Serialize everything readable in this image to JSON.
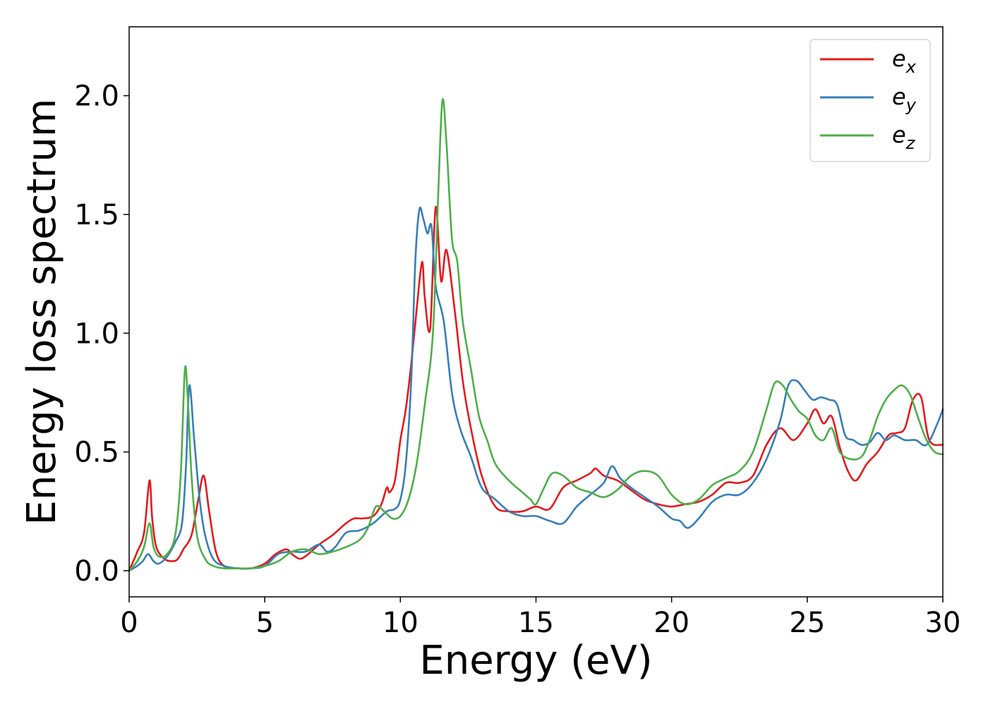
{
  "chart_data": {
    "type": "line",
    "title": "",
    "xlabel": "Energy (eV)",
    "ylabel": "Energy loss spectrum",
    "xlim": [
      0,
      30
    ],
    "ylim": [
      -0.11,
      2.29
    ],
    "xticks": [
      0,
      5,
      10,
      15,
      20,
      25,
      30
    ],
    "xtick_labels": [
      "0",
      "5",
      "10",
      "15",
      "20",
      "25",
      "30"
    ],
    "yticks": [
      0.0,
      0.5,
      1.0,
      1.5,
      2.0
    ],
    "ytick_labels": [
      "0.0",
      "0.5",
      "1.0",
      "1.5",
      "2.0"
    ],
    "grid": false,
    "legend_position": "top-right",
    "series": [
      {
        "name": "e_x",
        "label_base": "e",
        "label_sub": "x",
        "color": "#e41a1c",
        "x": [
          0,
          0.3,
          0.55,
          0.75,
          0.85,
          1.0,
          1.3,
          1.6,
          1.8,
          2.0,
          2.3,
          2.55,
          2.75,
          2.95,
          3.2,
          3.5,
          4.0,
          4.5,
          5.0,
          5.4,
          5.8,
          6.0,
          6.3,
          6.6,
          7.0,
          7.5,
          8.0,
          8.3,
          8.6,
          9.0,
          9.3,
          9.5,
          9.6,
          9.8,
          10.0,
          10.2,
          10.4,
          10.6,
          10.8,
          10.9,
          11.1,
          11.3,
          11.5,
          11.7,
          12.0,
          12.3,
          12.6,
          13.0,
          13.5,
          14.0,
          14.5,
          15.0,
          15.5,
          16.0,
          16.5,
          17.0,
          17.2,
          17.5,
          18.0,
          18.5,
          19.0,
          19.5,
          20.0,
          20.5,
          21.0,
          21.5,
          22.0,
          22.5,
          23.0,
          23.5,
          24.0,
          24.5,
          25.0,
          25.3,
          25.6,
          25.9,
          26.2,
          26.5,
          26.8,
          27.2,
          27.6,
          28.0,
          28.3,
          28.6,
          28.9,
          29.2,
          29.5,
          30.0
        ],
        "y": [
          0.0,
          0.08,
          0.16,
          0.38,
          0.22,
          0.1,
          0.05,
          0.04,
          0.05,
          0.09,
          0.15,
          0.3,
          0.4,
          0.25,
          0.08,
          0.02,
          0.01,
          0.01,
          0.03,
          0.07,
          0.09,
          0.07,
          0.05,
          0.07,
          0.11,
          0.15,
          0.2,
          0.22,
          0.22,
          0.23,
          0.28,
          0.35,
          0.33,
          0.38,
          0.55,
          0.68,
          0.87,
          1.1,
          1.3,
          1.15,
          1.02,
          1.53,
          1.22,
          1.35,
          1.1,
          0.8,
          0.6,
          0.4,
          0.27,
          0.25,
          0.25,
          0.27,
          0.26,
          0.35,
          0.38,
          0.41,
          0.43,
          0.4,
          0.38,
          0.34,
          0.3,
          0.28,
          0.27,
          0.28,
          0.29,
          0.32,
          0.37,
          0.37,
          0.4,
          0.53,
          0.6,
          0.55,
          0.62,
          0.68,
          0.62,
          0.65,
          0.52,
          0.42,
          0.38,
          0.45,
          0.5,
          0.57,
          0.58,
          0.6,
          0.72,
          0.73,
          0.55,
          0.53
        ]
      },
      {
        "name": "e_y",
        "label_base": "e",
        "label_sub": "y",
        "color": "#377eb8",
        "x": [
          0,
          0.3,
          0.5,
          0.7,
          0.9,
          1.1,
          1.4,
          1.7,
          1.95,
          2.1,
          2.22,
          2.4,
          2.6,
          2.8,
          3.1,
          3.5,
          4.0,
          4.5,
          5.0,
          5.5,
          6.0,
          6.5,
          7.0,
          7.3,
          7.6,
          8.0,
          8.5,
          9.0,
          9.5,
          9.8,
          10.0,
          10.2,
          10.4,
          10.55,
          10.7,
          10.85,
          11.0,
          11.15,
          11.3,
          11.6,
          11.9,
          12.2,
          12.6,
          13.0,
          13.5,
          14.0,
          14.5,
          15.0,
          15.5,
          16.0,
          16.5,
          17.0,
          17.5,
          17.8,
          18.1,
          18.5,
          19.0,
          19.5,
          20.0,
          20.3,
          20.6,
          21.0,
          21.5,
          22.0,
          22.5,
          23.0,
          23.5,
          24.0,
          24.3,
          24.6,
          24.9,
          25.2,
          25.5,
          25.8,
          26.1,
          26.4,
          26.7,
          27.0,
          27.3,
          27.6,
          27.9,
          28.2,
          28.6,
          29.0,
          29.4,
          29.8,
          30.0
        ],
        "y": [
          0.0,
          0.02,
          0.04,
          0.07,
          0.04,
          0.03,
          0.06,
          0.12,
          0.2,
          0.45,
          0.78,
          0.55,
          0.3,
          0.15,
          0.05,
          0.02,
          0.01,
          0.01,
          0.02,
          0.07,
          0.08,
          0.08,
          0.11,
          0.08,
          0.1,
          0.16,
          0.17,
          0.2,
          0.25,
          0.26,
          0.3,
          0.45,
          0.8,
          1.3,
          1.52,
          1.48,
          1.42,
          1.45,
          1.2,
          1.05,
          0.75,
          0.6,
          0.48,
          0.35,
          0.3,
          0.25,
          0.23,
          0.23,
          0.21,
          0.2,
          0.27,
          0.32,
          0.37,
          0.44,
          0.39,
          0.35,
          0.31,
          0.27,
          0.22,
          0.21,
          0.18,
          0.22,
          0.29,
          0.32,
          0.32,
          0.37,
          0.47,
          0.63,
          0.78,
          0.8,
          0.76,
          0.72,
          0.73,
          0.72,
          0.7,
          0.57,
          0.55,
          0.53,
          0.54,
          0.58,
          0.55,
          0.57,
          0.55,
          0.55,
          0.53,
          0.62,
          0.68
        ]
      },
      {
        "name": "e_z",
        "label_base": "e",
        "label_sub": "z",
        "color": "#4daf4a",
        "x": [
          0,
          0.3,
          0.55,
          0.75,
          0.9,
          1.1,
          1.4,
          1.7,
          1.9,
          2.05,
          2.15,
          2.3,
          2.5,
          2.8,
          3.1,
          3.5,
          4.0,
          4.5,
          5.0,
          5.5,
          6.0,
          6.5,
          7.0,
          7.5,
          8.0,
          8.5,
          8.8,
          9.1,
          9.4,
          9.7,
          10.0,
          10.3,
          10.6,
          10.9,
          11.2,
          11.4,
          11.55,
          11.7,
          11.9,
          12.1,
          12.3,
          12.6,
          12.9,
          13.2,
          13.5,
          14.0,
          14.5,
          14.8,
          15.0,
          15.3,
          15.6,
          16.0,
          16.5,
          17.0,
          17.5,
          18.0,
          18.5,
          19.0,
          19.5,
          20.0,
          20.5,
          21.0,
          21.5,
          22.0,
          22.5,
          23.0,
          23.5,
          23.8,
          24.1,
          24.4,
          24.7,
          25.0,
          25.3,
          25.6,
          25.9,
          26.2,
          26.6,
          27.0,
          27.3,
          27.6,
          27.9,
          28.2,
          28.5,
          28.8,
          29.1,
          29.4,
          29.7,
          30.0
        ],
        "y": [
          0.0,
          0.04,
          0.1,
          0.2,
          0.1,
          0.06,
          0.07,
          0.15,
          0.4,
          0.84,
          0.75,
          0.4,
          0.15,
          0.05,
          0.02,
          0.01,
          0.01,
          0.01,
          0.02,
          0.04,
          0.08,
          0.09,
          0.07,
          0.08,
          0.1,
          0.13,
          0.18,
          0.27,
          0.25,
          0.22,
          0.23,
          0.3,
          0.45,
          0.7,
          1.0,
          1.6,
          1.98,
          1.8,
          1.4,
          1.3,
          1.05,
          0.85,
          0.65,
          0.55,
          0.45,
          0.38,
          0.33,
          0.3,
          0.28,
          0.35,
          0.41,
          0.4,
          0.35,
          0.33,
          0.31,
          0.34,
          0.4,
          0.42,
          0.4,
          0.32,
          0.28,
          0.3,
          0.36,
          0.39,
          0.42,
          0.5,
          0.68,
          0.79,
          0.78,
          0.72,
          0.67,
          0.64,
          0.57,
          0.55,
          0.6,
          0.5,
          0.47,
          0.48,
          0.55,
          0.65,
          0.72,
          0.76,
          0.78,
          0.74,
          0.64,
          0.55,
          0.5,
          0.49
        ]
      }
    ]
  }
}
